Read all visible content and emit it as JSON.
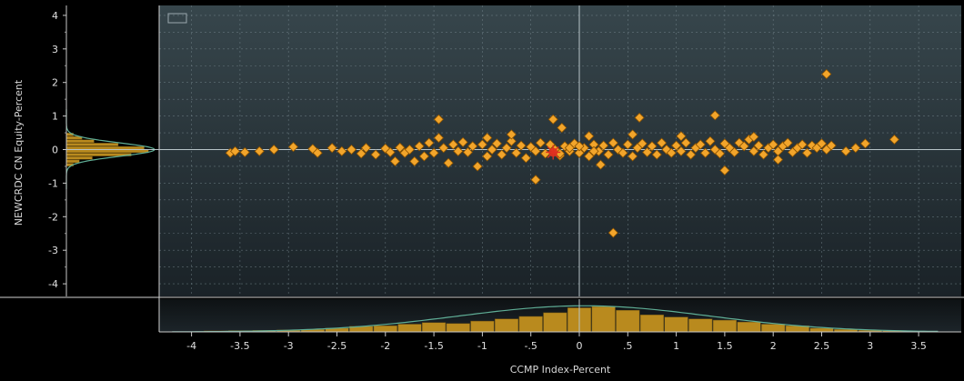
{
  "chart_data": {
    "type": "scatter",
    "xlabel": "CCMP Index-Percent",
    "ylabel": "NEWCRDC CN Equity-Percent",
    "xlim": [
      -4.4,
      3.9
    ],
    "ylim": [
      -4.4,
      4.3
    ],
    "xticks": [
      -4,
      -3.5,
      -3,
      -2.5,
      -2,
      -1.5,
      -1,
      -0.5,
      0,
      0.5,
      1,
      1.5,
      2,
      2.5,
      3,
      3.5
    ],
    "xtick_labels": [
      "-4",
      "-3.5",
      "-3",
      "-2.5",
      "-2",
      "-1.5",
      "-1",
      "-.5",
      "0",
      ".5",
      "1",
      "1.5",
      "2",
      "2.5",
      "3",
      "3.5"
    ],
    "yticks": [
      4,
      3,
      2,
      1,
      0,
      -1,
      -2,
      -3,
      -4
    ],
    "ytick_labels": [
      "4",
      "3",
      "2",
      "1",
      "0",
      "-1",
      "-2",
      "-3",
      "-4"
    ],
    "legend": "top-left",
    "grid": true,
    "colors": {
      "point": "#f2a52b",
      "point_edge": "#8a5200",
      "highlight": "#e03020",
      "histogram": "#b98a1e",
      "density_curve": "#5fae96",
      "crosshair": "#b8c4c8",
      "plot_bg_top": "#37464c",
      "plot_bg_bottom": "#1a2227",
      "grid": "#7b8c93"
    },
    "points": [
      [
        -3.6,
        -0.1
      ],
      [
        -3.55,
        -0.05
      ],
      [
        -3.45,
        -0.08
      ],
      [
        -3.3,
        -0.05
      ],
      [
        -3.15,
        0.0
      ],
      [
        -2.95,
        0.08
      ],
      [
        -2.75,
        0.02
      ],
      [
        -2.7,
        -0.1
      ],
      [
        -2.55,
        0.05
      ],
      [
        -2.45,
        -0.05
      ],
      [
        -2.35,
        0.0
      ],
      [
        -2.25,
        -0.12
      ],
      [
        -2.2,
        0.05
      ],
      [
        -2.1,
        -0.15
      ],
      [
        -2.0,
        0.03
      ],
      [
        -1.95,
        -0.08
      ],
      [
        -1.85,
        0.06
      ],
      [
        -1.8,
        -0.1
      ],
      [
        -1.75,
        0.0
      ],
      [
        -1.7,
        -0.35
      ],
      [
        -1.65,
        0.1
      ],
      [
        -1.6,
        -0.2
      ],
      [
        -1.55,
        0.2
      ],
      [
        -1.5,
        -0.1
      ],
      [
        -1.45,
        0.35
      ],
      [
        -1.4,
        0.05
      ],
      [
        -1.35,
        -0.4
      ],
      [
        -1.3,
        0.15
      ],
      [
        -1.25,
        -0.05
      ],
      [
        -1.2,
        0.22
      ],
      [
        -1.15,
        -0.08
      ],
      [
        -1.1,
        0.1
      ],
      [
        -1.05,
        -0.5
      ],
      [
        -1.0,
        0.15
      ],
      [
        -0.95,
        -0.2
      ],
      [
        -0.9,
        0.0
      ],
      [
        -0.85,
        0.18
      ],
      [
        -0.8,
        -0.15
      ],
      [
        -0.75,
        0.05
      ],
      [
        -0.7,
        0.25
      ],
      [
        -0.65,
        -0.1
      ],
      [
        -0.6,
        0.12
      ],
      [
        -0.55,
        -0.25
      ],
      [
        -0.5,
        0.08
      ],
      [
        -0.45,
        -0.05
      ],
      [
        -0.4,
        0.2
      ],
      [
        -0.35,
        -0.12
      ],
      [
        -0.3,
        0.15
      ],
      [
        -0.25,
        0.0
      ],
      [
        -0.2,
        -0.18
      ],
      [
        -0.15,
        0.1
      ],
      [
        -0.1,
        -0.05
      ],
      [
        -0.05,
        0.18
      ],
      [
        0.0,
        -0.1
      ],
      [
        0.05,
        0.05
      ],
      [
        0.1,
        -0.2
      ],
      [
        0.15,
        0.15
      ],
      [
        0.2,
        -0.05
      ],
      [
        0.25,
        0.12
      ],
      [
        0.3,
        -0.15
      ],
      [
        0.35,
        0.2
      ],
      [
        0.4,
        0.0
      ],
      [
        0.45,
        -0.1
      ],
      [
        0.5,
        0.15
      ],
      [
        0.55,
        -0.2
      ],
      [
        0.6,
        0.05
      ],
      [
        0.65,
        0.18
      ],
      [
        0.7,
        -0.08
      ],
      [
        0.75,
        0.1
      ],
      [
        0.8,
        -0.15
      ],
      [
        0.85,
        0.2
      ],
      [
        0.9,
        0.0
      ],
      [
        0.95,
        -0.1
      ],
      [
        1.0,
        0.12
      ],
      [
        1.05,
        -0.05
      ],
      [
        1.1,
        0.2
      ],
      [
        1.15,
        -0.15
      ],
      [
        1.2,
        0.05
      ],
      [
        1.25,
        0.15
      ],
      [
        1.3,
        -0.1
      ],
      [
        1.35,
        0.25
      ],
      [
        1.4,
        0.0
      ],
      [
        1.45,
        -0.12
      ],
      [
        1.5,
        0.18
      ],
      [
        1.55,
        0.05
      ],
      [
        1.6,
        -0.08
      ],
      [
        1.65,
        0.2
      ],
      [
        1.7,
        0.1
      ],
      [
        1.75,
        0.3
      ],
      [
        1.8,
        -0.05
      ],
      [
        1.85,
        0.12
      ],
      [
        1.9,
        -0.15
      ],
      [
        1.95,
        0.05
      ],
      [
        2.0,
        0.15
      ],
      [
        2.05,
        -0.05
      ],
      [
        2.1,
        0.1
      ],
      [
        2.15,
        0.2
      ],
      [
        2.2,
        -0.08
      ],
      [
        2.25,
        0.05
      ],
      [
        2.3,
        0.15
      ],
      [
        2.35,
        -0.1
      ],
      [
        2.4,
        0.12
      ],
      [
        2.45,
        0.05
      ],
      [
        2.5,
        0.18
      ],
      [
        2.55,
        0.0
      ],
      [
        2.6,
        0.12
      ],
      [
        2.75,
        -0.05
      ],
      [
        2.85,
        0.05
      ],
      [
        2.95,
        0.18
      ],
      [
        3.25,
        0.3
      ],
      [
        2.55,
        2.25
      ],
      [
        -1.45,
        0.9
      ],
      [
        -0.27,
        0.9
      ],
      [
        0.62,
        0.95
      ],
      [
        1.4,
        1.02
      ],
      [
        1.5,
        -0.62
      ],
      [
        -0.45,
        -0.9
      ],
      [
        0.35,
        -2.48
      ],
      [
        -0.18,
        0.65
      ],
      [
        0.22,
        -0.45
      ],
      [
        0.55,
        0.45
      ],
      [
        -0.7,
        0.45
      ],
      [
        1.8,
        0.38
      ],
      [
        2.05,
        -0.3
      ],
      [
        -1.9,
        -0.35
      ],
      [
        -0.95,
        0.35
      ],
      [
        0.1,
        0.4
      ],
      [
        1.05,
        0.4
      ],
      [
        -0.2,
        -0.12
      ],
      [
        -0.1,
        0.05
      ],
      [
        0.0,
        0.1
      ],
      [
        0.15,
        -0.05
      ]
    ],
    "highlight_point": [
      -0.27,
      -0.08
    ],
    "x_histogram": [
      [
        -3.75,
        0.03
      ],
      [
        -3.5,
        0.04
      ],
      [
        -3.25,
        0.05
      ],
      [
        -3.0,
        0.06
      ],
      [
        -2.75,
        0.08
      ],
      [
        -2.5,
        0.12
      ],
      [
        -2.25,
        0.18
      ],
      [
        -2.0,
        0.2
      ],
      [
        -1.75,
        0.25
      ],
      [
        -1.5,
        0.3
      ],
      [
        -1.25,
        0.27
      ],
      [
        -1.0,
        0.35
      ],
      [
        -0.75,
        0.42
      ],
      [
        -0.5,
        0.5
      ],
      [
        -0.25,
        0.62
      ],
      [
        0.0,
        0.78
      ],
      [
        0.25,
        0.82
      ],
      [
        0.5,
        0.7
      ],
      [
        0.75,
        0.55
      ],
      [
        1.0,
        0.48
      ],
      [
        1.25,
        0.42
      ],
      [
        1.5,
        0.38
      ],
      [
        1.75,
        0.32
      ],
      [
        2.0,
        0.25
      ],
      [
        2.25,
        0.2
      ],
      [
        2.5,
        0.12
      ],
      [
        2.75,
        0.08
      ],
      [
        3.0,
        0.05
      ],
      [
        3.25,
        0.04
      ]
    ],
    "y_histogram": [
      [
        0.45,
        0.08
      ],
      [
        0.35,
        0.18
      ],
      [
        0.25,
        0.32
      ],
      [
        0.15,
        0.6
      ],
      [
        0.05,
        0.9
      ],
      [
        -0.05,
        0.95
      ],
      [
        -0.15,
        0.75
      ],
      [
        -0.25,
        0.3
      ],
      [
        -0.35,
        0.15
      ],
      [
        -0.45,
        0.08
      ]
    ]
  }
}
